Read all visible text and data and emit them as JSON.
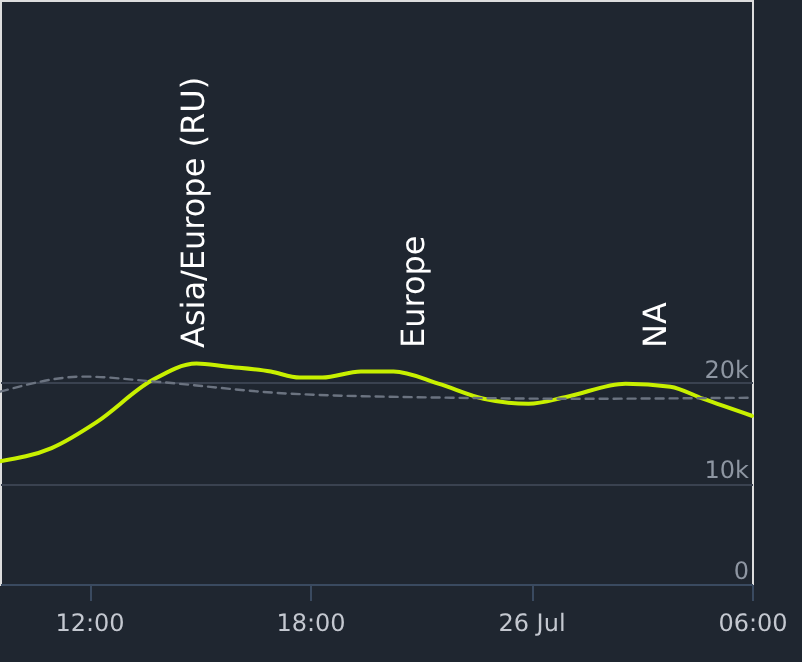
{
  "chart_data": {
    "type": "line",
    "x": [
      "--07-25T09:35",
      "--07-25T10:59",
      "--07-25T12:13",
      "--07-25T13:42",
      "--07-25T14:55",
      "--07-25T15:43",
      "--07-25T16:56",
      "--07-25T17:43",
      "--07-25T18:20",
      "--07-25T19:23",
      "--07-25T20:16",
      "--07-25T21:29",
      "--07-25T22:43",
      "--07-25T23:56",
      "--07-26T00:59",
      "--07-26T02:34",
      "--07-26T03:47",
      "--07-26T04:40",
      "--07-26T06:00"
    ],
    "series": [
      {
        "color": "#c8f000",
        "values": [
          12200,
          13500,
          16100,
          20200,
          21900,
          21600,
          21100,
          20500,
          20500,
          21100,
          21100,
          19900,
          18400,
          17900,
          18600,
          19900,
          19600,
          18400,
          16700
        ]
      },
      {
        "color": "#6b7380",
        "line_style": "dashed",
        "x": [
          "--07-25T09:35",
          "--07-25T11:52",
          "--07-25T13:47",
          "--07-25T17:28",
          "--07-25T21:50",
          "--07-26T01:20",
          "--07-26T06:00"
        ],
        "values": [
          19100,
          20600,
          20100,
          18900,
          18500,
          18400,
          18500
        ]
      }
    ],
    "xlim": [
      "--07-25T09:35",
      "--07-26T06:00"
    ],
    "xticks": [
      {
        "value": "--07-25T12:00",
        "label": "12:00"
      },
      {
        "value": "--07-25T18:00",
        "label": "18:00"
      },
      {
        "value": "--07-26T00:00",
        "label": "26 Jul"
      },
      {
        "value": "--07-26T06:00",
        "label": "06:00"
      }
    ],
    "ylim": [
      0,
      58000
    ],
    "yticks": [
      0,
      {
        "value": 10000,
        "label": "10k"
      },
      {
        "value": 20000,
        "label": "20k"
      }
    ],
    "grid": "y",
    "line_style": "solid",
    "marker": "none",
    "annotations": [
      "Asia/Europe (RU)",
      "Europe",
      "NA"
    ]
  }
}
